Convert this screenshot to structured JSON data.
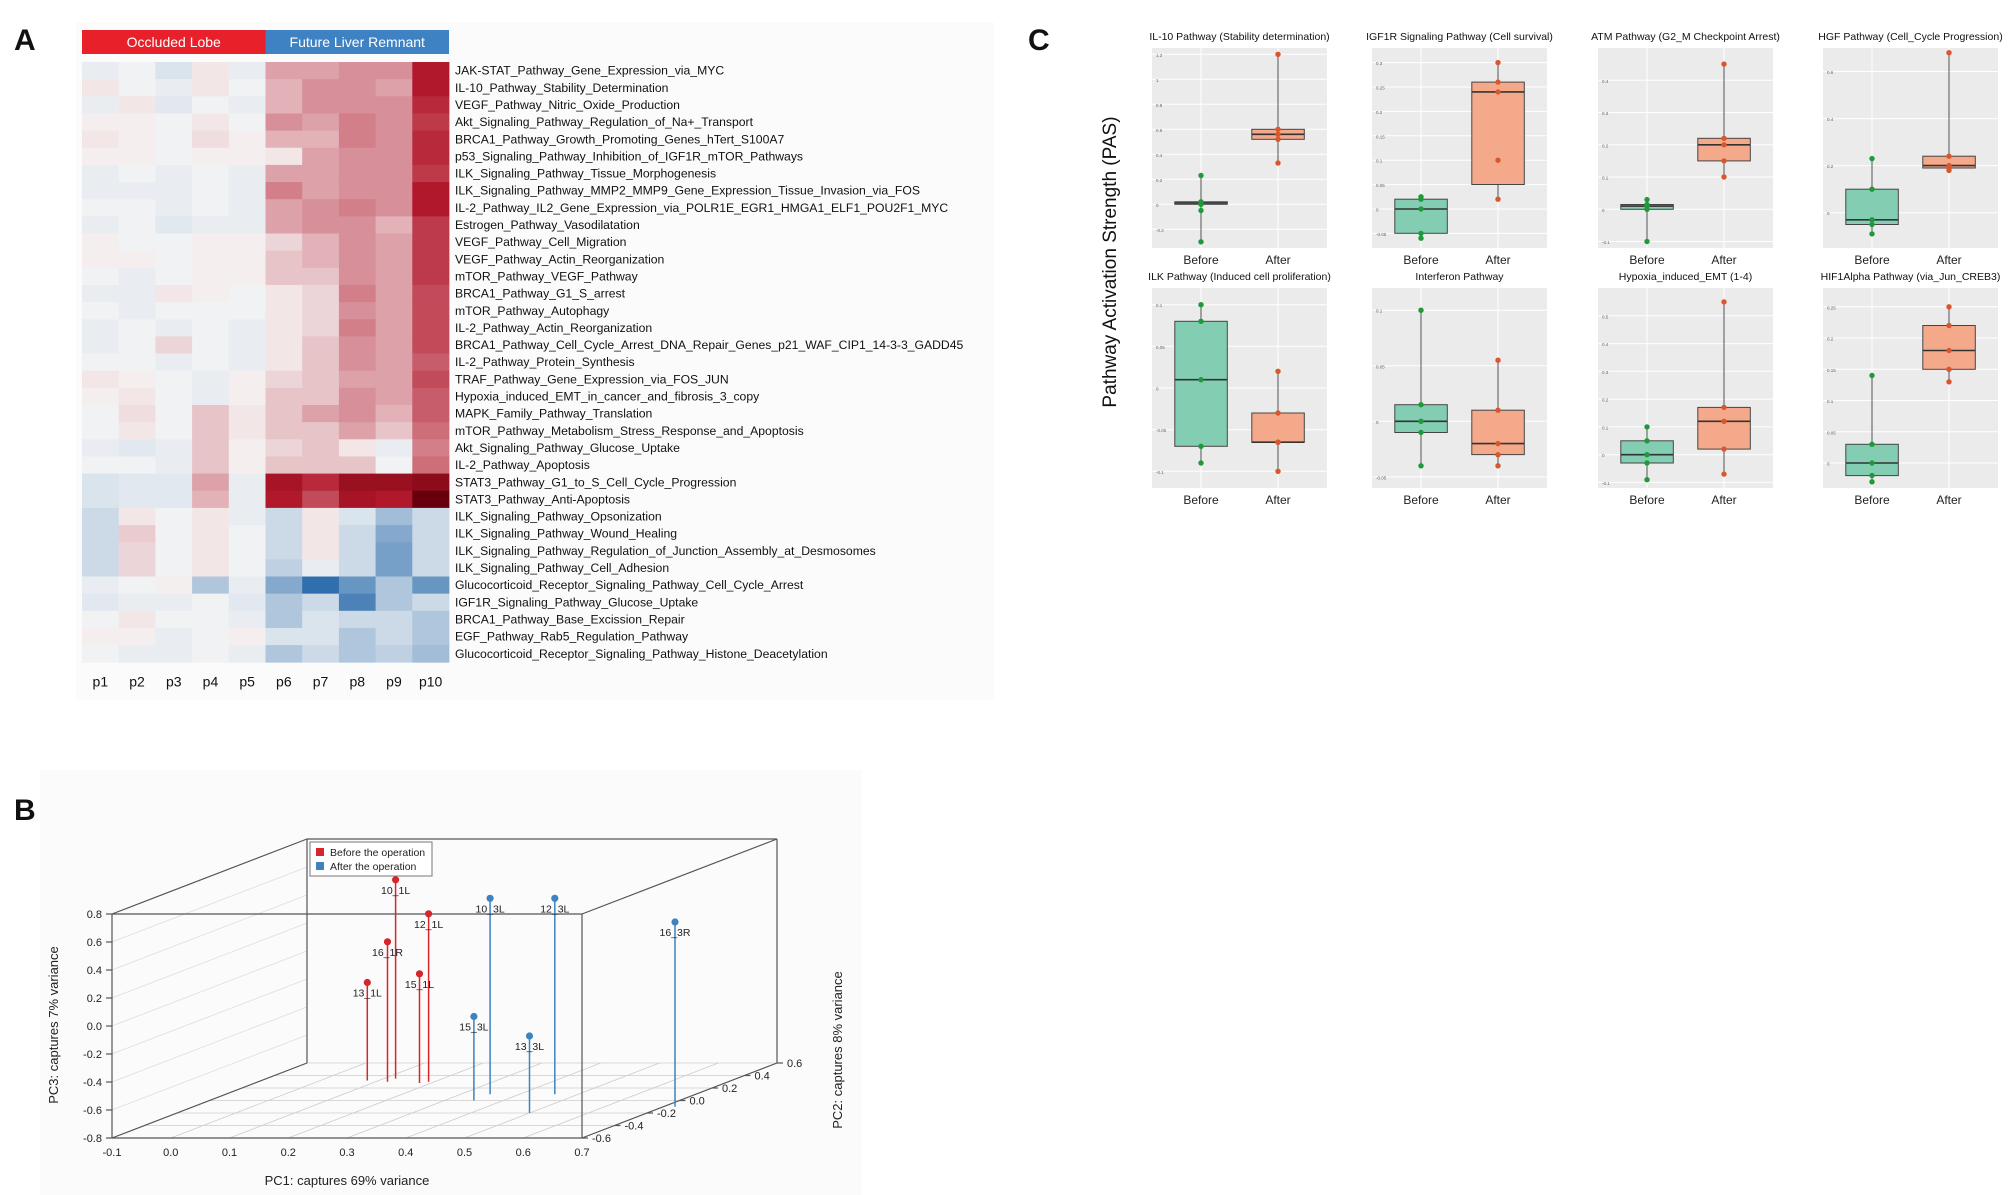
{
  "panel_letters": {
    "a": "A",
    "b": "B",
    "c": "C"
  },
  "chart_data": [
    {
      "type": "heatmap",
      "panel": "A",
      "group_labels": [
        "Occluded Lobe",
        "Future Liver Remnant"
      ],
      "group_colors": [
        "#e8202a",
        "#3e82c4"
      ],
      "columns": [
        "p1",
        "p2",
        "p3",
        "p4",
        "p5",
        "p6",
        "p7",
        "p8",
        "p9",
        "p10"
      ],
      "rows": [
        "JAK-STAT_Pathway_Gene_Expression_via_MYC",
        "IL-10_Pathway_Stability_Determination",
        "VEGF_Pathway_Nitric_Oxide_Production",
        "Akt_Signaling_Pathway_Regulation_of_Na+_Transport",
        "BRCA1_Pathway_Growth_Promoting_Genes_hTert_S100A7",
        "p53_Signaling_Pathway_Inhibition_of_IGF1R_mTOR_Pathways",
        "ILK_Signaling_Pathway_Tissue_Morphogenesis",
        "ILK_Signaling_Pathway_MMP2_MMP9_Gene_Expression_Tissue_Invasion_via_FOS",
        "IL-2_Pathway_IL2_Gene_Expression_via_POLR1E_EGR1_HMGA1_ELF1_POU2F1_MYC",
        "Estrogen_Pathway_Vasodilatation",
        "VEGF_Pathway_Cell_Migration",
        "VEGF_Pathway_Actin_Reorganization",
        "mTOR_Pathway_VEGF_Pathway",
        "BRCA1_Pathway_G1_S_arrest",
        "mTOR_Pathway_Autophagy",
        "IL-2_Pathway_Actin_Reorganization",
        "BRCA1_Pathway_Cell_Cycle_Arrest_DNA_Repair_Genes_p21_WAF_CIP1_14-3-3_GADD45",
        "IL-2_Pathway_Protein_Synthesis",
        "TRAF_Pathway_Gene_Expression_via_FOS_JUN",
        "Hypoxia_induced_EMT_in_cancer_and_fibrosis_3_copy",
        "MAPK_Family_Pathway_Translation",
        "mTOR_Pathway_Metabolism_Stress_Response_and_Apoptosis",
        "Akt_Signaling_Pathway_Glucose_Uptake",
        "IL-2_Pathway_Apoptosis",
        "STAT3_Pathway_G1_to_S_Cell_Cycle_Progression",
        "STAT3_Pathway_Anti-Apoptosis",
        "ILK_Signaling_Pathway_Opsonization",
        "ILK_Signaling_Pathway_Wound_Healing",
        "ILK_Signaling_Pathway_Regulation_of_Junction_Assembly_at_Desmosomes",
        "ILK_Signaling_Pathway_Cell_Adhesion",
        "Glucocorticoid_Receptor_Signaling_Pathway_Cell_Cycle_Arrest",
        "IGF1R_Signaling_Pathway_Glucose_Uptake",
        "BRCA1_Pathway_Base_Excission_Repair",
        "EGF_Pathway_Rab5_Regulation_Pathway",
        "Glucocorticoid_Receptor_Signaling_Pathway_Histone_Deacetylation"
      ],
      "values": [
        [
          -0.1,
          -0.05,
          -0.2,
          0.1,
          -0.1,
          0.5,
          0.5,
          0.6,
          0.6,
          1.3
        ],
        [
          0.1,
          -0.05,
          -0.1,
          0.1,
          -0.05,
          0.4,
          0.6,
          0.6,
          0.5,
          1.3
        ],
        [
          -0.1,
          0.1,
          -0.15,
          -0.05,
          -0.1,
          0.4,
          0.6,
          0.6,
          0.6,
          1.2
        ],
        [
          0.05,
          0.05,
          -0.05,
          0.1,
          -0.05,
          0.6,
          0.5,
          0.7,
          0.6,
          1.1
        ],
        [
          0.1,
          0.05,
          -0.05,
          0.15,
          0.05,
          0.4,
          0.4,
          0.7,
          0.6,
          1.2
        ],
        [
          0.05,
          0.05,
          -0.05,
          0.05,
          0.05,
          0.1,
          0.5,
          0.6,
          0.6,
          1.2
        ],
        [
          -0.1,
          -0.05,
          -0.1,
          -0.05,
          -0.1,
          0.5,
          0.5,
          0.6,
          0.6,
          1.1
        ],
        [
          -0.1,
          -0.1,
          -0.1,
          -0.05,
          -0.1,
          0.7,
          0.5,
          0.6,
          0.6,
          1.3
        ],
        [
          -0.05,
          -0.05,
          -0.1,
          -0.05,
          -0.1,
          0.5,
          0.6,
          0.7,
          0.6,
          1.3
        ],
        [
          -0.1,
          -0.05,
          -0.15,
          -0.1,
          -0.1,
          0.5,
          0.6,
          0.6,
          0.4,
          1.1
        ],
        [
          0.05,
          -0.05,
          -0.05,
          0.05,
          0.05,
          0.2,
          0.4,
          0.6,
          0.5,
          1.1
        ],
        [
          0.05,
          0.05,
          -0.05,
          0.05,
          0.05,
          0.3,
          0.4,
          0.6,
          0.5,
          1.1
        ],
        [
          -0.05,
          -0.1,
          -0.05,
          0.05,
          0.05,
          0.3,
          0.3,
          0.6,
          0.5,
          1.1
        ],
        [
          -0.1,
          -0.1,
          0.1,
          0.05,
          -0.05,
          0.1,
          0.2,
          0.7,
          0.5,
          1.0
        ],
        [
          -0.05,
          -0.1,
          -0.05,
          -0.05,
          -0.05,
          0.1,
          0.2,
          0.6,
          0.5,
          1.0
        ],
        [
          -0.1,
          -0.05,
          -0.1,
          -0.05,
          -0.1,
          0.1,
          0.2,
          0.7,
          0.5,
          1.0
        ],
        [
          -0.1,
          -0.05,
          0.2,
          -0.05,
          -0.1,
          0.1,
          0.3,
          0.6,
          0.5,
          1.0
        ],
        [
          -0.05,
          -0.05,
          -0.1,
          -0.05,
          -0.1,
          0.1,
          0.3,
          0.6,
          0.5,
          0.9
        ],
        [
          0.1,
          0.05,
          -0.05,
          -0.1,
          0.05,
          0.2,
          0.3,
          0.5,
          0.5,
          1.0
        ],
        [
          0.05,
          0.1,
          -0.05,
          -0.1,
          0.05,
          0.3,
          0.3,
          0.6,
          0.5,
          0.9
        ],
        [
          -0.05,
          0.15,
          -0.05,
          0.3,
          0.1,
          0.3,
          0.5,
          0.6,
          0.4,
          0.9
        ],
        [
          -0.05,
          0.1,
          -0.05,
          0.3,
          0.1,
          0.3,
          0.3,
          0.5,
          0.3,
          0.8
        ],
        [
          -0.1,
          -0.15,
          -0.1,
          0.3,
          0.05,
          0.2,
          0.3,
          0.1,
          -0.1,
          0.7
        ],
        [
          -0.05,
          -0.05,
          -0.1,
          0.3,
          0.05,
          0.3,
          0.3,
          0.3,
          -0.05,
          0.8
        ],
        [
          -0.2,
          -0.15,
          -0.15,
          0.5,
          -0.1,
          1.4,
          1.2,
          1.5,
          1.5,
          1.6
        ],
        [
          -0.2,
          -0.15,
          -0.15,
          0.4,
          -0.1,
          1.3,
          1.0,
          1.4,
          1.3,
          1.9
        ],
        [
          -0.3,
          0.1,
          -0.05,
          0.1,
          -0.1,
          -0.3,
          0.1,
          -0.2,
          -0.6,
          -0.3
        ],
        [
          -0.3,
          0.25,
          -0.05,
          0.1,
          -0.05,
          -0.3,
          0.1,
          -0.3,
          -0.8,
          -0.3
        ],
        [
          -0.3,
          0.2,
          -0.05,
          0.1,
          -0.05,
          -0.3,
          0.1,
          -0.3,
          -0.9,
          -0.3
        ],
        [
          -0.3,
          0.2,
          -0.05,
          0.1,
          -0.05,
          -0.4,
          -0.1,
          -0.3,
          -0.9,
          -0.3
        ],
        [
          -0.1,
          -0.05,
          0.05,
          -0.5,
          -0.1,
          -0.8,
          -1.4,
          -1.0,
          -0.5,
          -1.0
        ],
        [
          -0.15,
          -0.1,
          -0.1,
          -0.05,
          -0.15,
          -0.5,
          -0.3,
          -1.2,
          -0.5,
          -0.3
        ],
        [
          -0.05,
          0.1,
          -0.05,
          -0.05,
          -0.1,
          -0.5,
          -0.2,
          -0.3,
          -0.3,
          -0.5
        ],
        [
          0.05,
          0.05,
          -0.1,
          -0.05,
          0.05,
          -0.2,
          -0.2,
          -0.5,
          -0.3,
          -0.5
        ],
        [
          -0.05,
          -0.1,
          -0.1,
          -0.05,
          -0.1,
          -0.5,
          -0.3,
          -0.5,
          -0.4,
          -0.6
        ]
      ],
      "color_scale": {
        "low": "#2f6fad",
        "mid": "#f7f7f7",
        "high": "#b2182b",
        "darkest_high": "#67000d"
      }
    },
    {
      "type": "scatter3d",
      "panel": "B",
      "xlabel": "PC1: captures 69% variance",
      "ylabel": "PC2: captures 8% variance",
      "zlabel": "PC3: captures 7% variance",
      "x_ticks": [
        "-0.1",
        "0.0",
        "0.1",
        "0.2",
        "0.3",
        "0.4",
        "0.5",
        "0.6",
        "0.7"
      ],
      "y_ticks": [
        "-0.6",
        "-0.4",
        "-0.2",
        "0.0",
        "0.2",
        "0.4",
        "0.6"
      ],
      "z_ticks": [
        "0.8",
        "0.6",
        "0.4",
        "0.2",
        "0.0",
        "-0.2",
        "-0.4",
        "-0.6",
        "-0.8"
      ],
      "legend": [
        {
          "label": "Before the operation",
          "color": "#d7262b"
        },
        {
          "label": "After the operation",
          "color": "#3f82c0"
        }
      ],
      "points": [
        {
          "label": "10_1L",
          "group": 0,
          "x": 0.12,
          "y": 0.35,
          "z": 0.62
        },
        {
          "label": "12_1L",
          "group": 0,
          "x": 0.19,
          "y": 0.3,
          "z": 0.4
        },
        {
          "label": "16_1R",
          "group": 0,
          "x": 0.12,
          "y": 0.3,
          "z": 0.2
        },
        {
          "label": "15_1L",
          "group": 0,
          "x": 0.18,
          "y": 0.28,
          "z": -0.02
        },
        {
          "label": "13_1L",
          "group": 0,
          "x": 0.08,
          "y": 0.32,
          "z": -0.1
        },
        {
          "label": "10_3L",
          "group": 1,
          "x": 0.35,
          "y": 0.1,
          "z": 0.6
        },
        {
          "label": "12_3L",
          "group": 1,
          "x": 0.46,
          "y": 0.1,
          "z": 0.6
        },
        {
          "label": "16_3R",
          "group": 1,
          "x": 0.72,
          "y": -0.1,
          "z": 0.52
        },
        {
          "label": "15_3L",
          "group": 1,
          "x": 0.35,
          "y": 0.0,
          "z": -0.2
        },
        {
          "label": "13_3L",
          "group": 1,
          "x": 0.5,
          "y": -0.2,
          "z": -0.25
        }
      ]
    },
    {
      "type": "boxplot",
      "panel": "C",
      "ylabel": "Pathway Activation Strength (PAS)",
      "categories": [
        "Before",
        "After"
      ],
      "colors": {
        "before_fill": "#83cdb2",
        "before_pt": "#1f9a3a",
        "after_fill": "#f5a98b",
        "after_pt": "#d9572f"
      },
      "panels": [
        {
          "title": "IL-10 Pathway (Stability determination)",
          "ylim": [
            -0.35,
            1.25
          ],
          "ticks": [
            1.2,
            1.0,
            0.8,
            0.6,
            0.4,
            0.2,
            0.0,
            -0.2
          ],
          "before": {
            "q1": 0.0,
            "med": 0.01,
            "q3": 0.02,
            "lo": -0.3,
            "hi": 0.23,
            "pts": [
              0.23,
              0.02,
              0.0,
              -0.05,
              -0.3
            ]
          },
          "after": {
            "q1": 0.52,
            "med": 0.56,
            "q3": 0.6,
            "lo": 0.33,
            "hi": 1.2,
            "pts": [
              1.2,
              0.6,
              0.56,
              0.52,
              0.33
            ]
          }
        },
        {
          "title": "IGF1R Signaling Pathway (Cell survival)",
          "ylim": [
            -0.08,
            0.33
          ],
          "ticks": [
            0.3,
            0.25,
            0.2,
            0.15,
            0.1,
            0.05,
            0.0,
            -0.05
          ],
          "before": {
            "q1": -0.05,
            "med": 0.0,
            "q3": 0.02,
            "lo": -0.06,
            "hi": 0.025,
            "pts": [
              0.025,
              0.02,
              0.0,
              -0.05,
              -0.06
            ]
          },
          "after": {
            "q1": 0.05,
            "med": 0.24,
            "q3": 0.26,
            "lo": 0.02,
            "hi": 0.3,
            "pts": [
              0.3,
              0.26,
              0.24,
              0.1,
              0.02
            ]
          }
        },
        {
          "title": "ATM Pathway (G2_M Checkpoint Arrest)",
          "ylim": [
            -0.12,
            0.5
          ],
          "ticks": [
            0.4,
            0.3,
            0.2,
            0.1,
            0.0,
            -0.1
          ],
          "before": {
            "q1": 0.0,
            "med": 0.01,
            "q3": 0.015,
            "lo": -0.1,
            "hi": 0.03,
            "pts": [
              0.03,
              0.015,
              0.01,
              0.0,
              -0.1
            ]
          },
          "after": {
            "q1": 0.15,
            "med": 0.2,
            "q3": 0.22,
            "lo": 0.1,
            "hi": 0.45,
            "pts": [
              0.45,
              0.22,
              0.2,
              0.15,
              0.1
            ]
          }
        },
        {
          "title": "HGF Pathway (Cell_Cycle Progression)",
          "ylim": [
            -0.15,
            0.7
          ],
          "ticks": [
            0.6,
            0.4,
            0.2,
            0.0
          ],
          "before": {
            "q1": -0.05,
            "med": -0.03,
            "q3": 0.1,
            "lo": -0.09,
            "hi": 0.23,
            "pts": [
              0.23,
              0.1,
              -0.03,
              -0.05,
              -0.09
            ]
          },
          "after": {
            "q1": 0.19,
            "med": 0.2,
            "q3": 0.24,
            "lo": 0.18,
            "hi": 0.68,
            "pts": [
              0.68,
              0.24,
              0.2,
              0.19,
              0.18
            ]
          }
        },
        {
          "title": "ILK Pathway (Induced cell proliferation)",
          "ylim": [
            -0.12,
            0.12
          ],
          "ticks": [
            0.1,
            0.05,
            0.0,
            -0.05,
            -0.1
          ],
          "before": {
            "q1": -0.07,
            "med": 0.01,
            "q3": 0.08,
            "lo": -0.09,
            "hi": 0.1,
            "pts": [
              0.1,
              0.08,
              0.01,
              -0.07,
              -0.09
            ]
          },
          "after": {
            "q1": -0.065,
            "med": -0.065,
            "q3": -0.03,
            "lo": -0.1,
            "hi": 0.02,
            "pts": [
              0.02,
              -0.03,
              -0.065,
              -0.065,
              -0.1
            ]
          }
        },
        {
          "title": "Interferon Pathway",
          "ylim": [
            -0.06,
            0.12
          ],
          "ticks": [
            0.1,
            0.05,
            0.0,
            -0.05
          ],
          "before": {
            "q1": -0.01,
            "med": 0.0,
            "q3": 0.015,
            "lo": -0.04,
            "hi": 0.1,
            "pts": [
              0.1,
              0.015,
              0.0,
              -0.01,
              -0.04
            ]
          },
          "after": {
            "q1": -0.03,
            "med": -0.02,
            "q3": 0.01,
            "lo": -0.04,
            "hi": 0.055,
            "pts": [
              0.055,
              0.01,
              -0.02,
              -0.03,
              -0.04
            ]
          }
        },
        {
          "title": "Hypoxia_induced_EMT (1-4)",
          "ylim": [
            -0.12,
            0.6
          ],
          "ticks": [
            0.5,
            0.4,
            0.3,
            0.2,
            0.1,
            0.0,
            -0.1
          ],
          "before": {
            "q1": -0.03,
            "med": 0.0,
            "q3": 0.05,
            "lo": -0.09,
            "hi": 0.1,
            "pts": [
              0.1,
              0.05,
              0.0,
              -0.03,
              -0.09
            ]
          },
          "after": {
            "q1": 0.02,
            "med": 0.12,
            "q3": 0.17,
            "lo": -0.07,
            "hi": 0.55,
            "pts": [
              0.55,
              0.17,
              0.12,
              0.02,
              -0.07
            ]
          }
        },
        {
          "title": "HIF1Alpha Pathway (via_Jun_CREB3)",
          "ylim": [
            -0.04,
            0.28
          ],
          "ticks": [
            0.25,
            0.2,
            0.15,
            0.1,
            0.05,
            0.0
          ],
          "before": {
            "q1": -0.02,
            "med": 0.0,
            "q3": 0.03,
            "lo": -0.03,
            "hi": 0.14,
            "pts": [
              0.14,
              0.03,
              0.0,
              -0.02,
              -0.03
            ]
          },
          "after": {
            "q1": 0.15,
            "med": 0.18,
            "q3": 0.22,
            "lo": 0.13,
            "hi": 0.25,
            "pts": [
              0.25,
              0.22,
              0.18,
              0.15,
              0.13
            ]
          }
        }
      ]
    }
  ]
}
